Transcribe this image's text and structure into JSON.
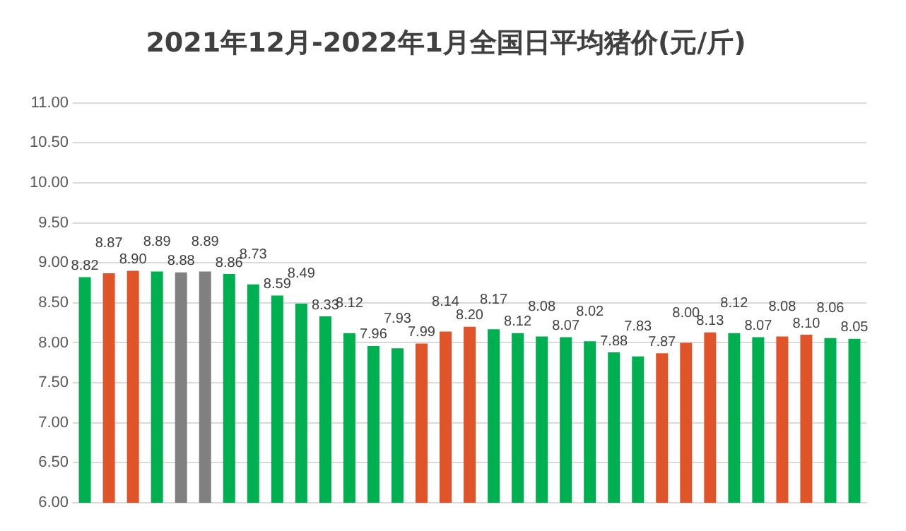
{
  "chart_data": {
    "type": "bar",
    "title": "2021年12月-2022年1月全国日平均猪价(元/斤)",
    "categories": [
      null,
      null,
      null,
      null,
      null,
      null,
      null,
      null,
      null,
      null,
      null,
      null,
      null,
      null,
      null,
      null,
      null,
      null,
      null,
      null,
      null,
      null,
      null,
      null,
      null,
      null,
      null,
      null,
      null,
      null,
      null,
      null,
      null
    ],
    "values": [
      8.82,
      8.87,
      8.9,
      8.89,
      8.88,
      8.89,
      8.86,
      8.73,
      8.59,
      8.49,
      8.33,
      8.12,
      7.96,
      7.93,
      7.99,
      8.14,
      8.2,
      8.17,
      8.12,
      8.08,
      8.07,
      8.02,
      7.88,
      7.83,
      7.87,
      8.0,
      8.13,
      8.12,
      8.07,
      8.08,
      8.1,
      8.06,
      8.05
    ],
    "value_labels": [
      "8.82",
      "8.87",
      "8.90",
      "8.89",
      "8.88",
      "8.89",
      "8.86",
      "8.73",
      "8.59",
      "8.49",
      "8.33",
      "8.12",
      "7.96",
      "7.93",
      "7.99",
      "8.14",
      "8.20",
      "8.17",
      "8.12",
      "8.08",
      "8.07",
      "8.02",
      "7.88",
      "7.83",
      "7.87",
      "8.00",
      "8.13",
      "8.12",
      "8.07",
      "8.08",
      "8.10",
      "8.06",
      "8.05"
    ],
    "colors": [
      "#00b050",
      "#e0542a",
      "#e0542a",
      "#00b050",
      "#808080",
      "#808080",
      "#00b050",
      "#00b050",
      "#00b050",
      "#00b050",
      "#00b050",
      "#00b050",
      "#00b050",
      "#00b050",
      "#e0542a",
      "#e0542a",
      "#e0542a",
      "#00b050",
      "#00b050",
      "#00b050",
      "#00b050",
      "#00b050",
      "#00b050",
      "#00b050",
      "#e0542a",
      "#e0542a",
      "#e0542a",
      "#00b050",
      "#00b050",
      "#e0542a",
      "#e0542a",
      "#00b050",
      "#00b050"
    ],
    "ylim": [
      6,
      11
    ],
    "yticks": [
      {
        "value": 6,
        "label": "6.00"
      },
      {
        "value": 6.5,
        "label": "6.50"
      },
      {
        "value": 7,
        "label": "7.00"
      },
      {
        "value": 7.5,
        "label": "7.50"
      },
      {
        "value": 8,
        "label": "8.00"
      },
      {
        "value": 8.5,
        "label": "8.50"
      },
      {
        "value": 9,
        "label": "9.00"
      },
      {
        "value": 9.5,
        "label": "9.50"
      },
      {
        "value": 10,
        "label": "10.00"
      },
      {
        "value": 10.5,
        "label": "10.50"
      },
      {
        "value": 11,
        "label": "11.00"
      }
    ],
    "grid": "y",
    "legend": false
  }
}
